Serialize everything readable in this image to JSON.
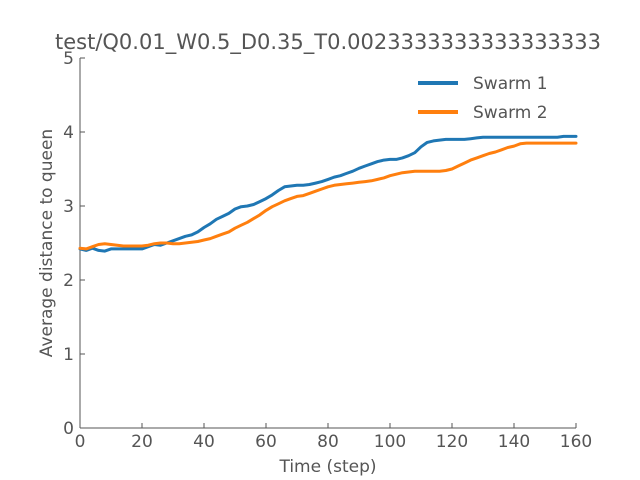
{
  "chart_data": {
    "type": "line",
    "title": "test/Q0.01_W0.5_D0.35_T0.0023333333333333333",
    "xlabel": "Time (step)",
    "ylabel": "Average distance to queen",
    "xlim": [
      0,
      160
    ],
    "ylim": [
      0,
      5
    ],
    "xticks": [
      "0",
      "20",
      "40",
      "60",
      "80",
      "100",
      "120",
      "140",
      "160"
    ],
    "yticks": [
      "0",
      "1",
      "2",
      "3",
      "4",
      "5"
    ],
    "grid": false,
    "legend_position": "top-right",
    "series": [
      {
        "name": "Swarm 1",
        "color": "#1f77b4",
        "x": [
          0,
          2,
          4,
          6,
          8,
          10,
          12,
          14,
          16,
          18,
          20,
          22,
          24,
          26,
          28,
          30,
          32,
          34,
          36,
          38,
          40,
          42,
          44,
          46,
          48,
          50,
          52,
          54,
          56,
          58,
          60,
          62,
          64,
          66,
          68,
          70,
          72,
          74,
          76,
          78,
          80,
          82,
          84,
          86,
          88,
          90,
          92,
          94,
          96,
          98,
          100,
          102,
          104,
          106,
          108,
          110,
          112,
          114,
          116,
          118,
          120,
          122,
          124,
          126,
          128,
          130,
          134,
          140,
          146,
          150,
          154,
          156,
          158,
          160
        ],
        "values": [
          2.42,
          2.4,
          2.43,
          2.4,
          2.39,
          2.42,
          2.42,
          2.42,
          2.42,
          2.42,
          2.42,
          2.45,
          2.48,
          2.47,
          2.5,
          2.53,
          2.56,
          2.59,
          2.61,
          2.65,
          2.71,
          2.76,
          2.82,
          2.86,
          2.9,
          2.96,
          2.99,
          3.0,
          3.02,
          3.06,
          3.1,
          3.15,
          3.21,
          3.26,
          3.27,
          3.28,
          3.28,
          3.29,
          3.31,
          3.33,
          3.36,
          3.39,
          3.41,
          3.44,
          3.47,
          3.51,
          3.54,
          3.57,
          3.6,
          3.62,
          3.63,
          3.63,
          3.65,
          3.68,
          3.72,
          3.8,
          3.86,
          3.88,
          3.89,
          3.9,
          3.9,
          3.9,
          3.9,
          3.91,
          3.92,
          3.93,
          3.93,
          3.93,
          3.93,
          3.93,
          3.93,
          3.94,
          3.94,
          3.94
        ]
      },
      {
        "name": "Swarm 2",
        "color": "#ff7f0e",
        "x": [
          0,
          2,
          4,
          6,
          8,
          10,
          12,
          14,
          16,
          18,
          20,
          22,
          24,
          26,
          28,
          30,
          32,
          34,
          36,
          38,
          40,
          42,
          44,
          46,
          48,
          50,
          52,
          54,
          56,
          58,
          60,
          62,
          64,
          66,
          68,
          70,
          72,
          74,
          76,
          78,
          80,
          82,
          84,
          86,
          88,
          90,
          92,
          94,
          96,
          98,
          100,
          102,
          104,
          106,
          108,
          110,
          112,
          114,
          116,
          118,
          120,
          122,
          124,
          126,
          128,
          130,
          132,
          134,
          136,
          138,
          140,
          142,
          144,
          146,
          150,
          154,
          158,
          160
        ],
        "values": [
          2.43,
          2.42,
          2.45,
          2.48,
          2.49,
          2.48,
          2.47,
          2.46,
          2.46,
          2.46,
          2.46,
          2.47,
          2.49,
          2.5,
          2.5,
          2.49,
          2.49,
          2.5,
          2.51,
          2.52,
          2.54,
          2.56,
          2.59,
          2.62,
          2.65,
          2.7,
          2.74,
          2.78,
          2.83,
          2.88,
          2.94,
          2.99,
          3.03,
          3.07,
          3.1,
          3.13,
          3.14,
          3.17,
          3.2,
          3.23,
          3.26,
          3.28,
          3.29,
          3.3,
          3.31,
          3.32,
          3.33,
          3.34,
          3.36,
          3.38,
          3.41,
          3.43,
          3.45,
          3.46,
          3.47,
          3.47,
          3.47,
          3.47,
          3.47,
          3.48,
          3.5,
          3.54,
          3.58,
          3.62,
          3.65,
          3.68,
          3.71,
          3.73,
          3.76,
          3.79,
          3.81,
          3.84,
          3.85,
          3.85,
          3.85,
          3.85,
          3.85,
          3.85
        ]
      }
    ]
  }
}
